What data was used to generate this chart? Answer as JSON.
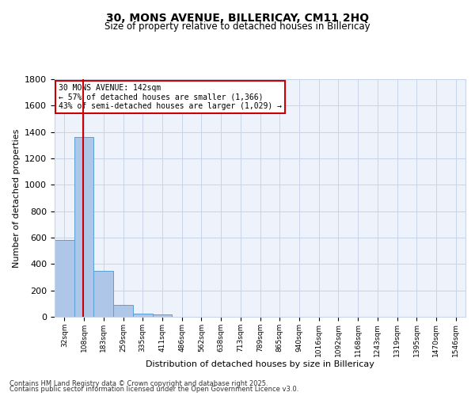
{
  "title1": "30, MONS AVENUE, BILLERICAY, CM11 2HQ",
  "title2": "Size of property relative to detached houses in Billericay",
  "xlabel": "Distribution of detached houses by size in Billericay",
  "ylabel": "Number of detached properties",
  "bin_labels": [
    "32sqm",
    "108sqm",
    "183sqm",
    "259sqm",
    "335sqm",
    "411sqm",
    "486sqm",
    "562sqm",
    "638sqm",
    "713sqm",
    "789sqm",
    "865sqm",
    "940sqm",
    "1016sqm",
    "1092sqm",
    "1168sqm",
    "1243sqm",
    "1319sqm",
    "1395sqm",
    "1470sqm",
    "1546sqm"
  ],
  "bar_values": [
    580,
    1365,
    350,
    90,
    25,
    20,
    0,
    0,
    0,
    0,
    0,
    0,
    0,
    0,
    0,
    0,
    0,
    0,
    0,
    0,
    0
  ],
  "bar_color": "#aec7e8",
  "bar_edge_color": "#5a9fd4",
  "property_label": "30 MONS AVENUE: 142sqm",
  "annotation_line1": "← 57% of detached houses are smaller (1,366)",
  "annotation_line2": "43% of semi-detached houses are larger (1,029) →",
  "red_line_color": "#cc0000",
  "annotation_box_color": "#cc0000",
  "ylim": [
    0,
    1800
  ],
  "yticks": [
    0,
    200,
    400,
    600,
    800,
    1000,
    1200,
    1400,
    1600,
    1800
  ],
  "footer1": "Contains HM Land Registry data © Crown copyright and database right 2025.",
  "footer2": "Contains public sector information licensed under the Open Government Licence v3.0.",
  "bg_color": "#eef2fb",
  "grid_color": "#c8d4e8"
}
